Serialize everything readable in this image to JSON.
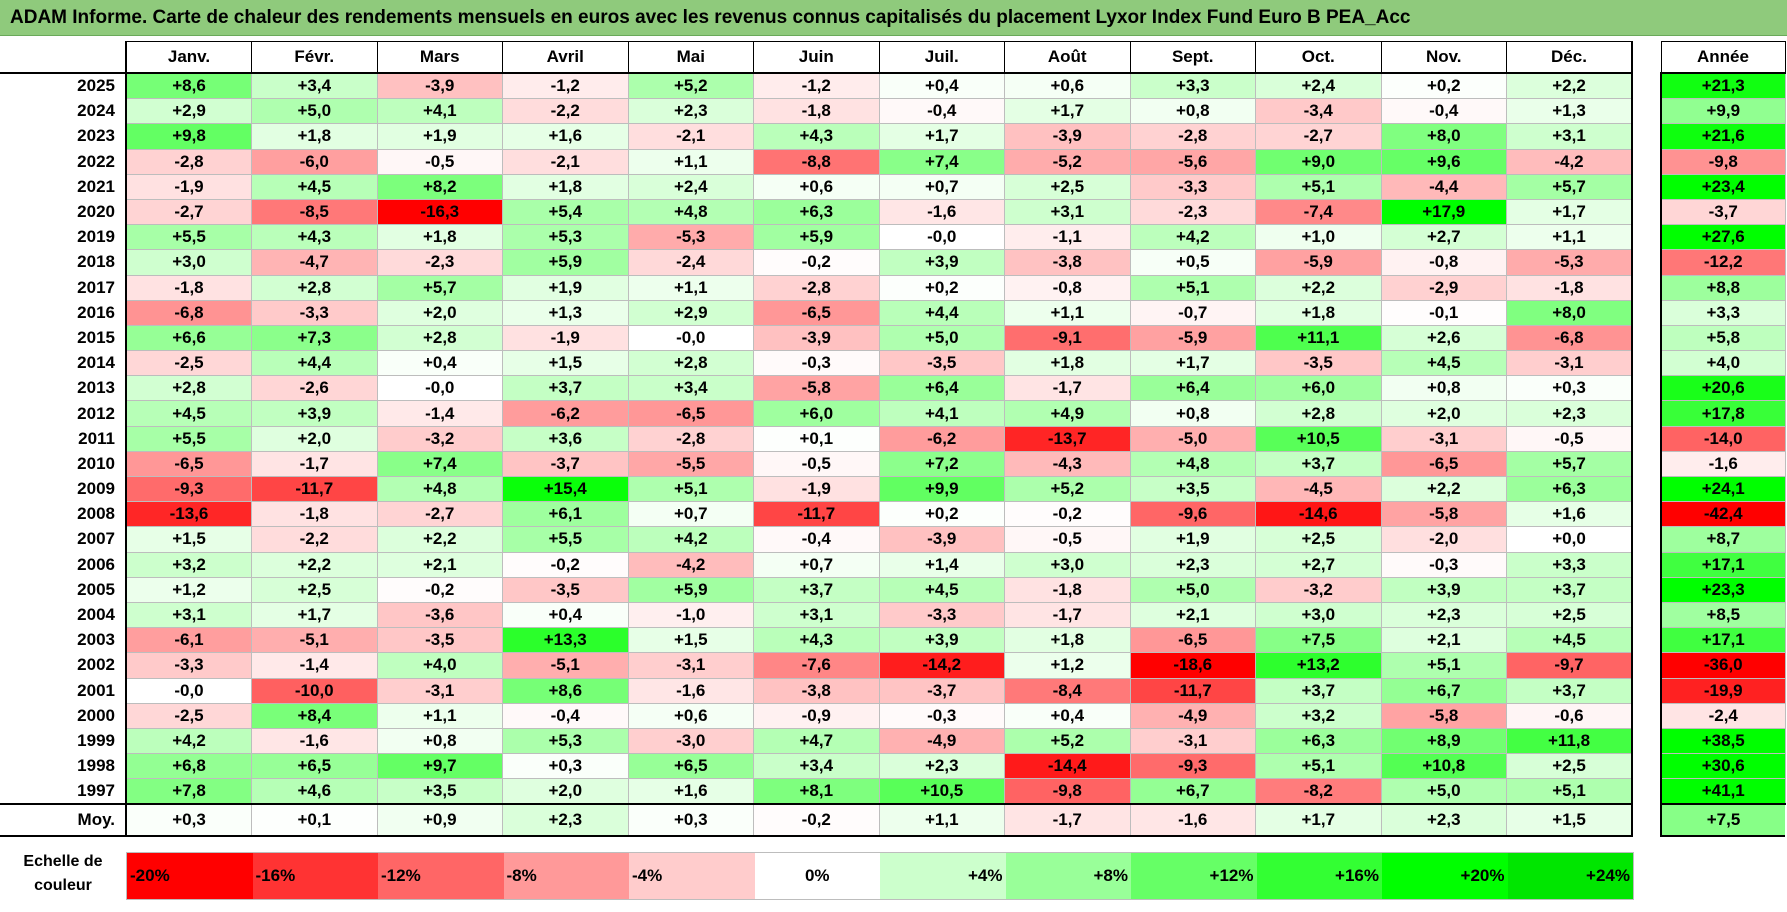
{
  "title": "ADAM Informe. Carte de chaleur des rendements mensuels en euros avec les revenus connus capitalisés du placement Lyxor Index Fund Euro B PEA_Acc",
  "chart_data": {
    "type": "heatmap",
    "title": "ADAM Informe. Carte de chaleur des rendements mensuels en euros avec les revenus connus capitalisés du placement Lyxor Index Fund Euro B PEA_Acc",
    "columns": [
      "Janv.",
      "Févr.",
      "Mars",
      "Avril",
      "Mai",
      "Juin",
      "Juil.",
      "Août",
      "Sept.",
      "Oct.",
      "Nov.",
      "Déc."
    ],
    "annual_header": "Année",
    "rows": [
      {
        "year": "2025",
        "values": [
          "+8,6",
          "+3,4",
          "-3,9",
          "-1,2",
          "+5,2",
          "-1,2",
          "+0,4",
          "+0,6",
          "+3,3",
          "+2,4",
          "+0,2",
          "+2,2"
        ],
        "annual": "+21,3"
      },
      {
        "year": "2024",
        "values": [
          "+2,9",
          "+5,0",
          "+4,1",
          "-2,2",
          "+2,3",
          "-1,8",
          "-0,4",
          "+1,7",
          "+0,8",
          "-3,4",
          "-0,4",
          "+1,3"
        ],
        "annual": "+9,9"
      },
      {
        "year": "2023",
        "values": [
          "+9,8",
          "+1,8",
          "+1,9",
          "+1,6",
          "-2,1",
          "+4,3",
          "+1,7",
          "-3,9",
          "-2,8",
          "-2,7",
          "+8,0",
          "+3,1"
        ],
        "annual": "+21,6"
      },
      {
        "year": "2022",
        "values": [
          "-2,8",
          "-6,0",
          "-0,5",
          "-2,1",
          "+1,1",
          "-8,8",
          "+7,4",
          "-5,2",
          "-5,6",
          "+9,0",
          "+9,6",
          "-4,2"
        ],
        "annual": "-9,8"
      },
      {
        "year": "2021",
        "values": [
          "-1,9",
          "+4,5",
          "+8,2",
          "+1,8",
          "+2,4",
          "+0,6",
          "+0,7",
          "+2,5",
          "-3,3",
          "+5,1",
          "-4,4",
          "+5,7"
        ],
        "annual": "+23,4"
      },
      {
        "year": "2020",
        "values": [
          "-2,7",
          "-8,5",
          "-16,3",
          "+5,4",
          "+4,8",
          "+6,3",
          "-1,6",
          "+3,1",
          "-2,3",
          "-7,4",
          "+17,9",
          "+1,7"
        ],
        "annual": "-3,7"
      },
      {
        "year": "2019",
        "values": [
          "+5,5",
          "+4,3",
          "+1,8",
          "+5,3",
          "-5,3",
          "+5,9",
          "-0,0",
          "-1,1",
          "+4,2",
          "+1,0",
          "+2,7",
          "+1,1"
        ],
        "annual": "+27,6"
      },
      {
        "year": "2018",
        "values": [
          "+3,0",
          "-4,7",
          "-2,3",
          "+5,9",
          "-2,4",
          "-0,2",
          "+3,9",
          "-3,8",
          "+0,5",
          "-5,9",
          "-0,8",
          "-5,3"
        ],
        "annual": "-12,2"
      },
      {
        "year": "2017",
        "values": [
          "-1,8",
          "+2,8",
          "+5,7",
          "+1,9",
          "+1,1",
          "-2,8",
          "+0,2",
          "-0,8",
          "+5,1",
          "+2,2",
          "-2,9",
          "-1,8"
        ],
        "annual": "+8,8"
      },
      {
        "year": "2016",
        "values": [
          "-6,8",
          "-3,3",
          "+2,0",
          "+1,3",
          "+2,9",
          "-6,5",
          "+4,4",
          "+1,1",
          "-0,7",
          "+1,8",
          "-0,1",
          "+8,0"
        ],
        "annual": "+3,3"
      },
      {
        "year": "2015",
        "values": [
          "+6,6",
          "+7,3",
          "+2,8",
          "-1,9",
          "-0,0",
          "-3,9",
          "+5,0",
          "-9,1",
          "-5,9",
          "+11,1",
          "+2,6",
          "-6,8"
        ],
        "annual": "+5,8"
      },
      {
        "year": "2014",
        "values": [
          "-2,5",
          "+4,4",
          "+0,4",
          "+1,5",
          "+2,8",
          "-0,3",
          "-3,5",
          "+1,8",
          "+1,7",
          "-3,5",
          "+4,5",
          "-3,1"
        ],
        "annual": "+4,0"
      },
      {
        "year": "2013",
        "values": [
          "+2,8",
          "-2,6",
          "-0,0",
          "+3,7",
          "+3,4",
          "-5,8",
          "+6,4",
          "-1,7",
          "+6,4",
          "+6,0",
          "+0,8",
          "+0,3"
        ],
        "annual": "+20,6"
      },
      {
        "year": "2012",
        "values": [
          "+4,5",
          "+3,9",
          "-1,4",
          "-6,2",
          "-6,5",
          "+6,0",
          "+4,1",
          "+4,9",
          "+0,8",
          "+2,8",
          "+2,0",
          "+2,3"
        ],
        "annual": "+17,8"
      },
      {
        "year": "2011",
        "values": [
          "+5,5",
          "+2,0",
          "-3,2",
          "+3,6",
          "-2,8",
          "+0,1",
          "-6,2",
          "-13,7",
          "-5,0",
          "+10,5",
          "-3,1",
          "-0,5"
        ],
        "annual": "-14,0"
      },
      {
        "year": "2010",
        "values": [
          "-6,5",
          "-1,7",
          "+7,4",
          "-3,7",
          "-5,5",
          "-0,5",
          "+7,2",
          "-4,3",
          "+4,8",
          "+3,7",
          "-6,5",
          "+5,7"
        ],
        "annual": "-1,6"
      },
      {
        "year": "2009",
        "values": [
          "-9,3",
          "-11,7",
          "+4,8",
          "+15,4",
          "+5,1",
          "-1,9",
          "+9,9",
          "+5,2",
          "+3,5",
          "-4,5",
          "+2,2",
          "+6,3"
        ],
        "annual": "+24,1"
      },
      {
        "year": "2008",
        "values": [
          "-13,6",
          "-1,8",
          "-2,7",
          "+6,1",
          "+0,7",
          "-11,7",
          "+0,2",
          "-0,2",
          "-9,6",
          "-14,6",
          "-5,8",
          "+1,6"
        ],
        "annual": "-42,4"
      },
      {
        "year": "2007",
        "values": [
          "+1,5",
          "-2,2",
          "+2,2",
          "+5,5",
          "+4,2",
          "-0,4",
          "-3,9",
          "-0,5",
          "+1,9",
          "+2,5",
          "-2,0",
          "+0,0"
        ],
        "annual": "+8,7"
      },
      {
        "year": "2006",
        "values": [
          "+3,2",
          "+2,2",
          "+2,1",
          "-0,2",
          "-4,2",
          "+0,7",
          "+1,4",
          "+3,0",
          "+2,3",
          "+2,7",
          "-0,3",
          "+3,3"
        ],
        "annual": "+17,1"
      },
      {
        "year": "2005",
        "values": [
          "+1,2",
          "+2,5",
          "-0,2",
          "-3,5",
          "+5,9",
          "+3,7",
          "+4,5",
          "-1,8",
          "+5,0",
          "-3,2",
          "+3,9",
          "+3,7"
        ],
        "annual": "+23,3"
      },
      {
        "year": "2004",
        "values": [
          "+3,1",
          "+1,7",
          "-3,6",
          "+0,4",
          "-1,0",
          "+3,1",
          "-3,3",
          "-1,7",
          "+2,1",
          "+3,0",
          "+2,3",
          "+2,5"
        ],
        "annual": "+8,5"
      },
      {
        "year": "2003",
        "values": [
          "-6,1",
          "-5,1",
          "-3,5",
          "+13,3",
          "+1,5",
          "+4,3",
          "+3,9",
          "+1,8",
          "-6,5",
          "+7,5",
          "+2,1",
          "+4,5"
        ],
        "annual": "+17,1"
      },
      {
        "year": "2002",
        "values": [
          "-3,3",
          "-1,4",
          "+4,0",
          "-5,1",
          "-3,1",
          "-7,6",
          "-14,2",
          "+1,2",
          "-18,6",
          "+13,2",
          "+5,1",
          "-9,7"
        ],
        "annual": "-36,0"
      },
      {
        "year": "2001",
        "values": [
          "-0,0",
          "-10,0",
          "-3,1",
          "+8,6",
          "-1,6",
          "-3,8",
          "-3,7",
          "-8,4",
          "-11,7",
          "+3,7",
          "+6,7",
          "+3,7"
        ],
        "annual": "-19,9"
      },
      {
        "year": "2000",
        "values": [
          "-2,5",
          "+8,4",
          "+1,1",
          "-0,4",
          "+0,6",
          "-0,9",
          "-0,3",
          "+0,4",
          "-4,9",
          "+3,2",
          "-5,8",
          "-0,6"
        ],
        "annual": "-2,4"
      },
      {
        "year": "1999",
        "values": [
          "+4,2",
          "-1,6",
          "+0,8",
          "+5,3",
          "-3,0",
          "+4,7",
          "-4,9",
          "+5,2",
          "-3,1",
          "+6,3",
          "+8,9",
          "+11,8"
        ],
        "annual": "+38,5"
      },
      {
        "year": "1998",
        "values": [
          "+6,8",
          "+6,5",
          "+9,7",
          "+0,3",
          "+6,5",
          "+3,4",
          "+2,3",
          "-14,4",
          "-9,3",
          "+5,1",
          "+10,8",
          "+2,5"
        ],
        "annual": "+30,6"
      },
      {
        "year": "1997",
        "values": [
          "+7,8",
          "+4,6",
          "+3,5",
          "+2,0",
          "+1,6",
          "+8,1",
          "+10,5",
          "-9,8",
          "+6,7",
          "-8,2",
          "+5,0",
          "+5,1"
        ],
        "annual": "+41,1"
      }
    ],
    "average": {
      "label": "Moy.",
      "values": [
        "+0,3",
        "+0,1",
        "+0,9",
        "+2,3",
        "+0,3",
        "-0,2",
        "+1,1",
        "-1,7",
        "-1,6",
        "+1,7",
        "+2,3",
        "+1,5"
      ],
      "annual": "+7,5"
    },
    "color_scale": {
      "label": "Echelle de couleur",
      "stops": [
        {
          "label": "-20%",
          "value": -20,
          "color": "#ff0000"
        },
        {
          "label": "-16%",
          "value": -16,
          "color": "#ff3333"
        },
        {
          "label": "-12%",
          "value": -12,
          "color": "#ff6666"
        },
        {
          "label": "-8%",
          "value": -8,
          "color": "#ff9999"
        },
        {
          "label": "-4%",
          "value": -4,
          "color": "#ffcccc"
        },
        {
          "label": "0%",
          "value": 0,
          "color": "#ffffff"
        },
        {
          "label": "+4%",
          "value": 4,
          "color": "#ccffcc"
        },
        {
          "label": "+8%",
          "value": 8,
          "color": "#99ff99"
        },
        {
          "label": "+12%",
          "value": 12,
          "color": "#66ff66"
        },
        {
          "label": "+16%",
          "value": 16,
          "color": "#33ff33"
        },
        {
          "label": "+20%",
          "value": 20,
          "color": "#00ff00"
        },
        {
          "label": "+24%",
          "value": 24,
          "color": "#00e600"
        }
      ]
    }
  }
}
